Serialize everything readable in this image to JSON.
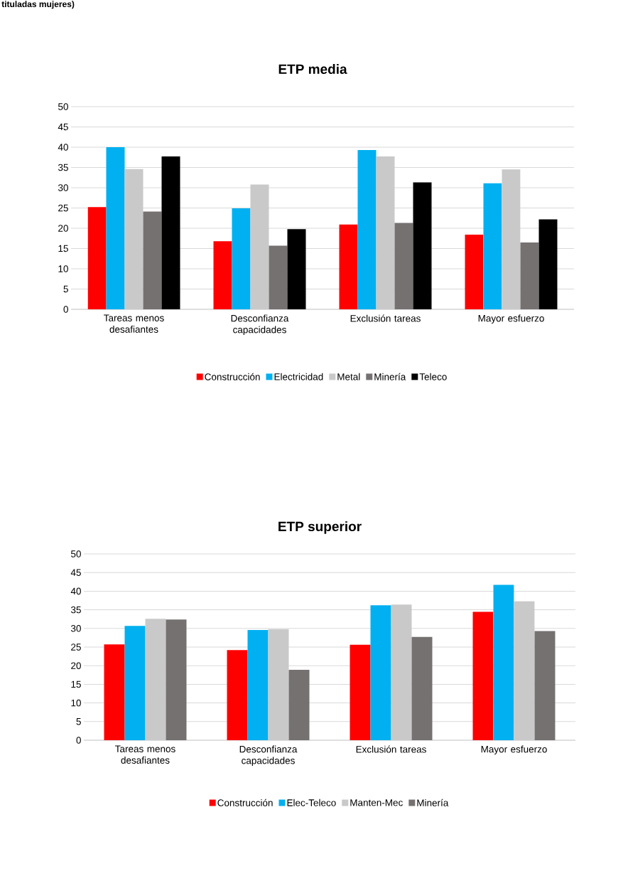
{
  "chart_data": [
    {
      "type": "bar",
      "title": "ETP media",
      "annotations": [
        "tituladas mujeres)"
      ],
      "categories": [
        "Tareas menos desafiantes",
        "Desconfianza capacidades",
        "Exclusión tareas",
        "Mayor esfuerzo"
      ],
      "series": [
        {
          "name": "Construcción",
          "color": "#ff0000",
          "values": [
            25.2,
            16.8,
            20.9,
            18.4
          ]
        },
        {
          "name": "Electricidad",
          "color": "#00b0f0",
          "values": [
            40,
            24.9,
            39.3,
            31.1
          ]
        },
        {
          "name": "Metal",
          "color": "#c9c9c9",
          "values": [
            34.6,
            30.8,
            37.7,
            34.5
          ]
        },
        {
          "name": "Minería",
          "color": "#767171",
          "values": [
            24.1,
            15.7,
            21.3,
            16.5
          ]
        },
        {
          "name": "Teleco",
          "color": "#000000",
          "values": [
            37.7,
            19.8,
            31.3,
            22.2
          ]
        }
      ],
      "ylim": [
        0,
        50
      ],
      "yticks": [
        0,
        5,
        10,
        15,
        20,
        25,
        30,
        35,
        40,
        45,
        50
      ],
      "grid": "y",
      "legend": "bottom"
    },
    {
      "type": "bar",
      "title": "ETP superior",
      "categories": [
        "Tareas menos desafiantes",
        "Desconfianza capacidades",
        "Exclusión tareas",
        "Mayor esfuerzo"
      ],
      "series": [
        {
          "name": "Construcción",
          "color": "#ff0000",
          "values": [
            25.7,
            24.2,
            25.6,
            34.5
          ]
        },
        {
          "name": "Elec-Teleco",
          "color": "#00b0f0",
          "values": [
            30.7,
            29.6,
            36.2,
            41.7
          ]
        },
        {
          "name": "Manten-Mec",
          "color": "#c9c9c9",
          "values": [
            32.6,
            29.8,
            36.4,
            37.3
          ]
        },
        {
          "name": "Minería",
          "color": "#767171",
          "values": [
            32.4,
            18.9,
            27.7,
            29.3
          ]
        }
      ],
      "ylim": [
        0,
        50
      ],
      "yticks": [
        0,
        5,
        10,
        15,
        20,
        25,
        30,
        35,
        40,
        45,
        50
      ],
      "grid": "y",
      "legend": "bottom"
    }
  ]
}
